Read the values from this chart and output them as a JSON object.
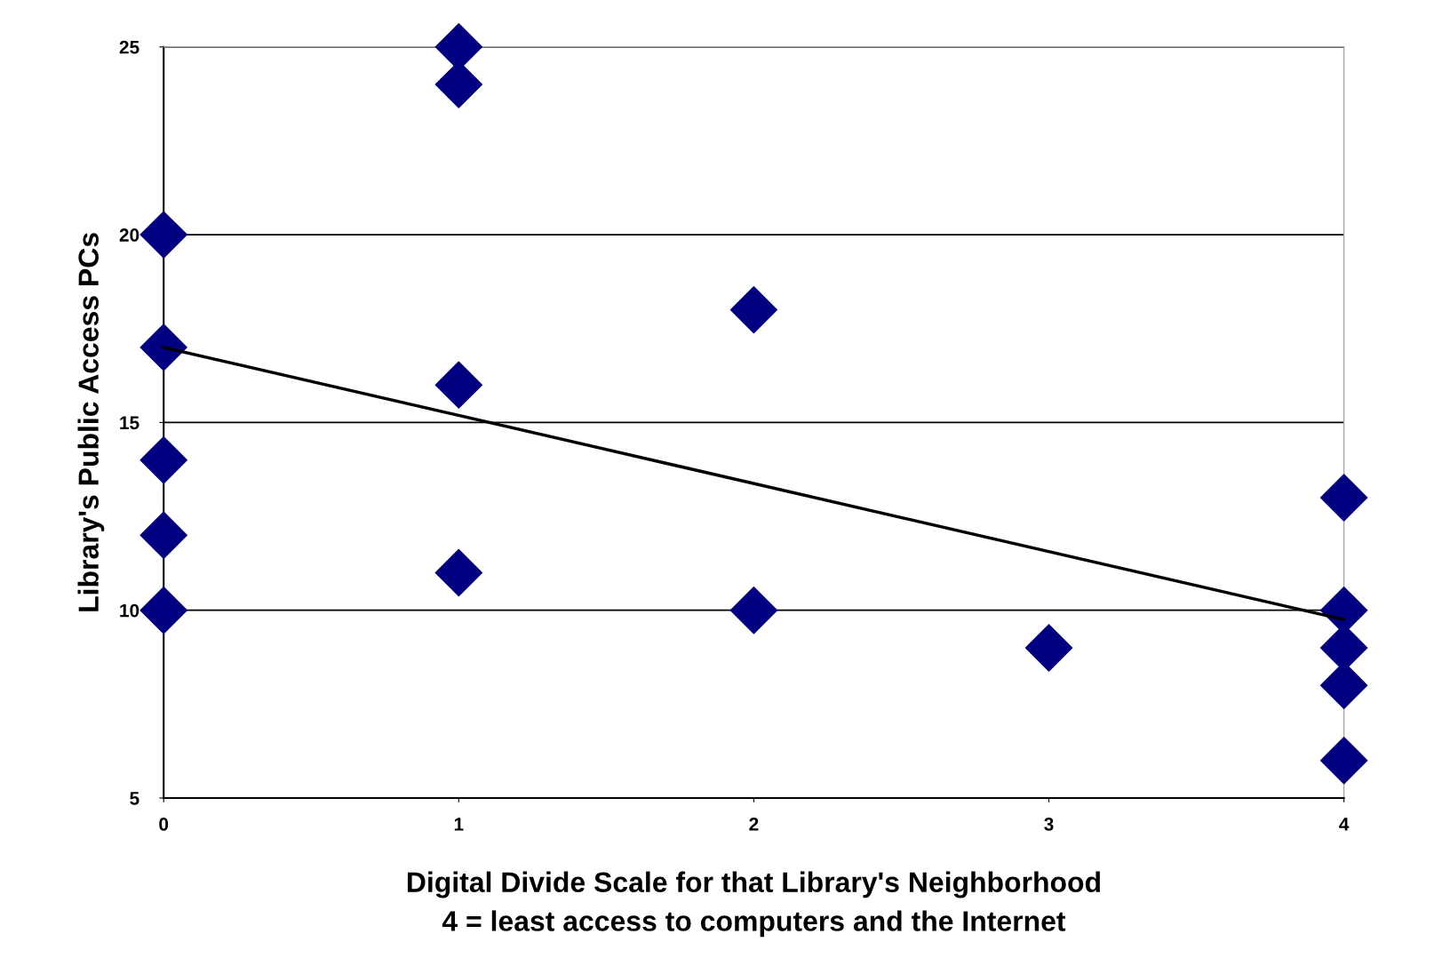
{
  "chart_data": {
    "type": "scatter",
    "xlabel": "Digital Divide Scale for that Library's Neighborhood\n4 = least access to computers and the Internet",
    "ylabel": "Library's Public Access PCs",
    "series": [
      {
        "color": "#000080",
        "marker": "diamond",
        "x": [
          0,
          0,
          0,
          0,
          0,
          1,
          1,
          1,
          1,
          2,
          2,
          3,
          4,
          4,
          4,
          4,
          4
        ],
        "values": [
          20,
          17,
          14,
          12,
          10,
          25,
          24,
          16,
          11,
          18,
          10,
          9,
          13,
          10,
          9,
          8,
          6
        ]
      },
      {
        "type": "line",
        "color": "#000000",
        "marker": "none",
        "line_style": "solid",
        "x": [
          0,
          4
        ],
        "values": [
          17.0,
          9.75
        ]
      }
    ],
    "xlim": [
      0,
      4
    ],
    "xticks": [
      0,
      1,
      2,
      3,
      4
    ],
    "ylim": [
      5,
      25
    ],
    "yticks": [
      5,
      10,
      15,
      20,
      25
    ],
    "grid": "y",
    "legend": false
  }
}
